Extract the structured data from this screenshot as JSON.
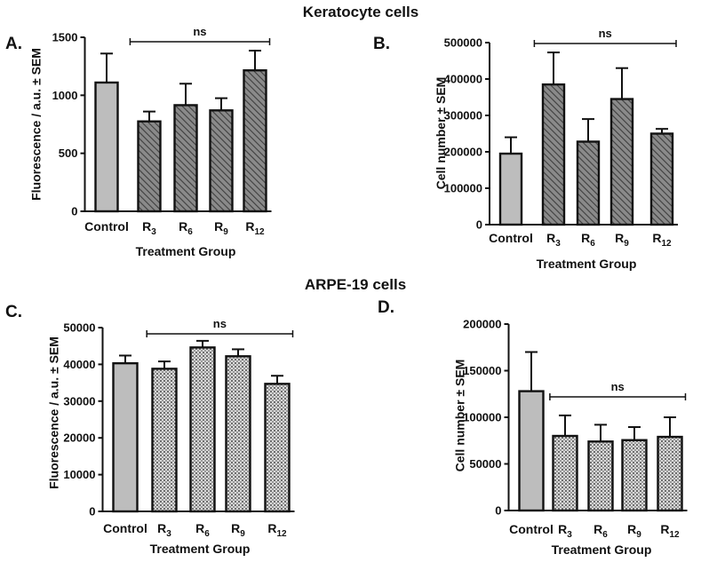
{
  "figure": {
    "headings": [
      "Keratocyte cells",
      "ARPE-19 cells"
    ],
    "colors": {
      "control": "#bdbdbd",
      "bar_dark": "#7a7a7a",
      "bar_light": "#d4d4d4",
      "stroke": "#111111"
    }
  },
  "chart_data": [
    {
      "type": "bar",
      "panel": "A.",
      "title": "Keratocyte cells",
      "xlabel": "Treatment Group",
      "ylabel": "Fluorescence / a.u. ±  SEM",
      "categories": [
        {
          "main": "Control",
          "sub": ""
        },
        {
          "main": "R",
          "sub": "3"
        },
        {
          "main": "R",
          "sub": "6"
        },
        {
          "main": "R",
          "sub": "9"
        },
        {
          "main": "R",
          "sub": "12"
        }
      ],
      "values": [
        1110,
        775,
        915,
        870,
        1215
      ],
      "errors": [
        250,
        85,
        185,
        105,
        170
      ],
      "ylim": [
        0,
        1500
      ],
      "yticks": [
        0,
        500,
        1000,
        1500
      ],
      "fills": [
        "control",
        "hatch",
        "hatch",
        "hatch",
        "hatch"
      ],
      "significance": {
        "label": "ns",
        "from": 1,
        "to": 4
      }
    },
    {
      "type": "bar",
      "panel": "B.",
      "title": "Keratocyte cells",
      "xlabel": "Treatment Group",
      "ylabel": "Cell number ±  SEM",
      "categories": [
        {
          "main": "Control",
          "sub": ""
        },
        {
          "main": "R",
          "sub": "3"
        },
        {
          "main": "R",
          "sub": "6"
        },
        {
          "main": "R",
          "sub": "9"
        },
        {
          "main": "R",
          "sub": "12"
        }
      ],
      "values": [
        195000,
        385000,
        228000,
        345000,
        250000
      ],
      "errors": [
        45000,
        88000,
        62000,
        85000,
        13000
      ],
      "ylim": [
        0,
        500000
      ],
      "yticks": [
        0,
        100000,
        200000,
        300000,
        400000,
        500000
      ],
      "fills": [
        "control",
        "hatch",
        "hatch",
        "hatch",
        "hatch"
      ],
      "significance": {
        "label": "ns",
        "from": 1,
        "to": 4
      }
    },
    {
      "type": "bar",
      "panel": "C.",
      "title": "ARPE-19 cells",
      "xlabel": "Treatment Group",
      "ylabel": "Fluorescence / a.u. ±  SEM",
      "categories": [
        {
          "main": "Control",
          "sub": ""
        },
        {
          "main": "R",
          "sub": "3"
        },
        {
          "main": "R",
          "sub": "6"
        },
        {
          "main": "R",
          "sub": "9"
        },
        {
          "main": "R",
          "sub": "12"
        }
      ],
      "values": [
        40300,
        38800,
        44600,
        42200,
        34700
      ],
      "errors": [
        2100,
        2000,
        1800,
        1900,
        2200
      ],
      "ylim": [
        0,
        50000
      ],
      "yticks": [
        0,
        10000,
        20000,
        30000,
        40000,
        50000
      ],
      "fills": [
        "control",
        "dots",
        "dots",
        "dots",
        "dots"
      ],
      "significance": {
        "label": "ns",
        "from": 1,
        "to": 4
      }
    },
    {
      "type": "bar",
      "panel": "D.",
      "title": "ARPE-19 cells",
      "xlabel": "Treatment Group",
      "ylabel": "Cell number ±  SEM",
      "categories": [
        {
          "main": "Control",
          "sub": ""
        },
        {
          "main": "R",
          "sub": "3"
        },
        {
          "main": "R",
          "sub": "6"
        },
        {
          "main": "R",
          "sub": "9"
        },
        {
          "main": "R",
          "sub": "12"
        }
      ],
      "values": [
        128000,
        80000,
        74000,
        75500,
        79000
      ],
      "errors": [
        42000,
        22000,
        18000,
        14000,
        21000
      ],
      "ylim": [
        0,
        200000
      ],
      "yticks": [
        0,
        50000,
        100000,
        150000,
        200000
      ],
      "fills": [
        "control",
        "dots",
        "dots",
        "dots",
        "dots"
      ],
      "significance": {
        "label": "ns",
        "from": 1,
        "to": 4
      }
    }
  ]
}
